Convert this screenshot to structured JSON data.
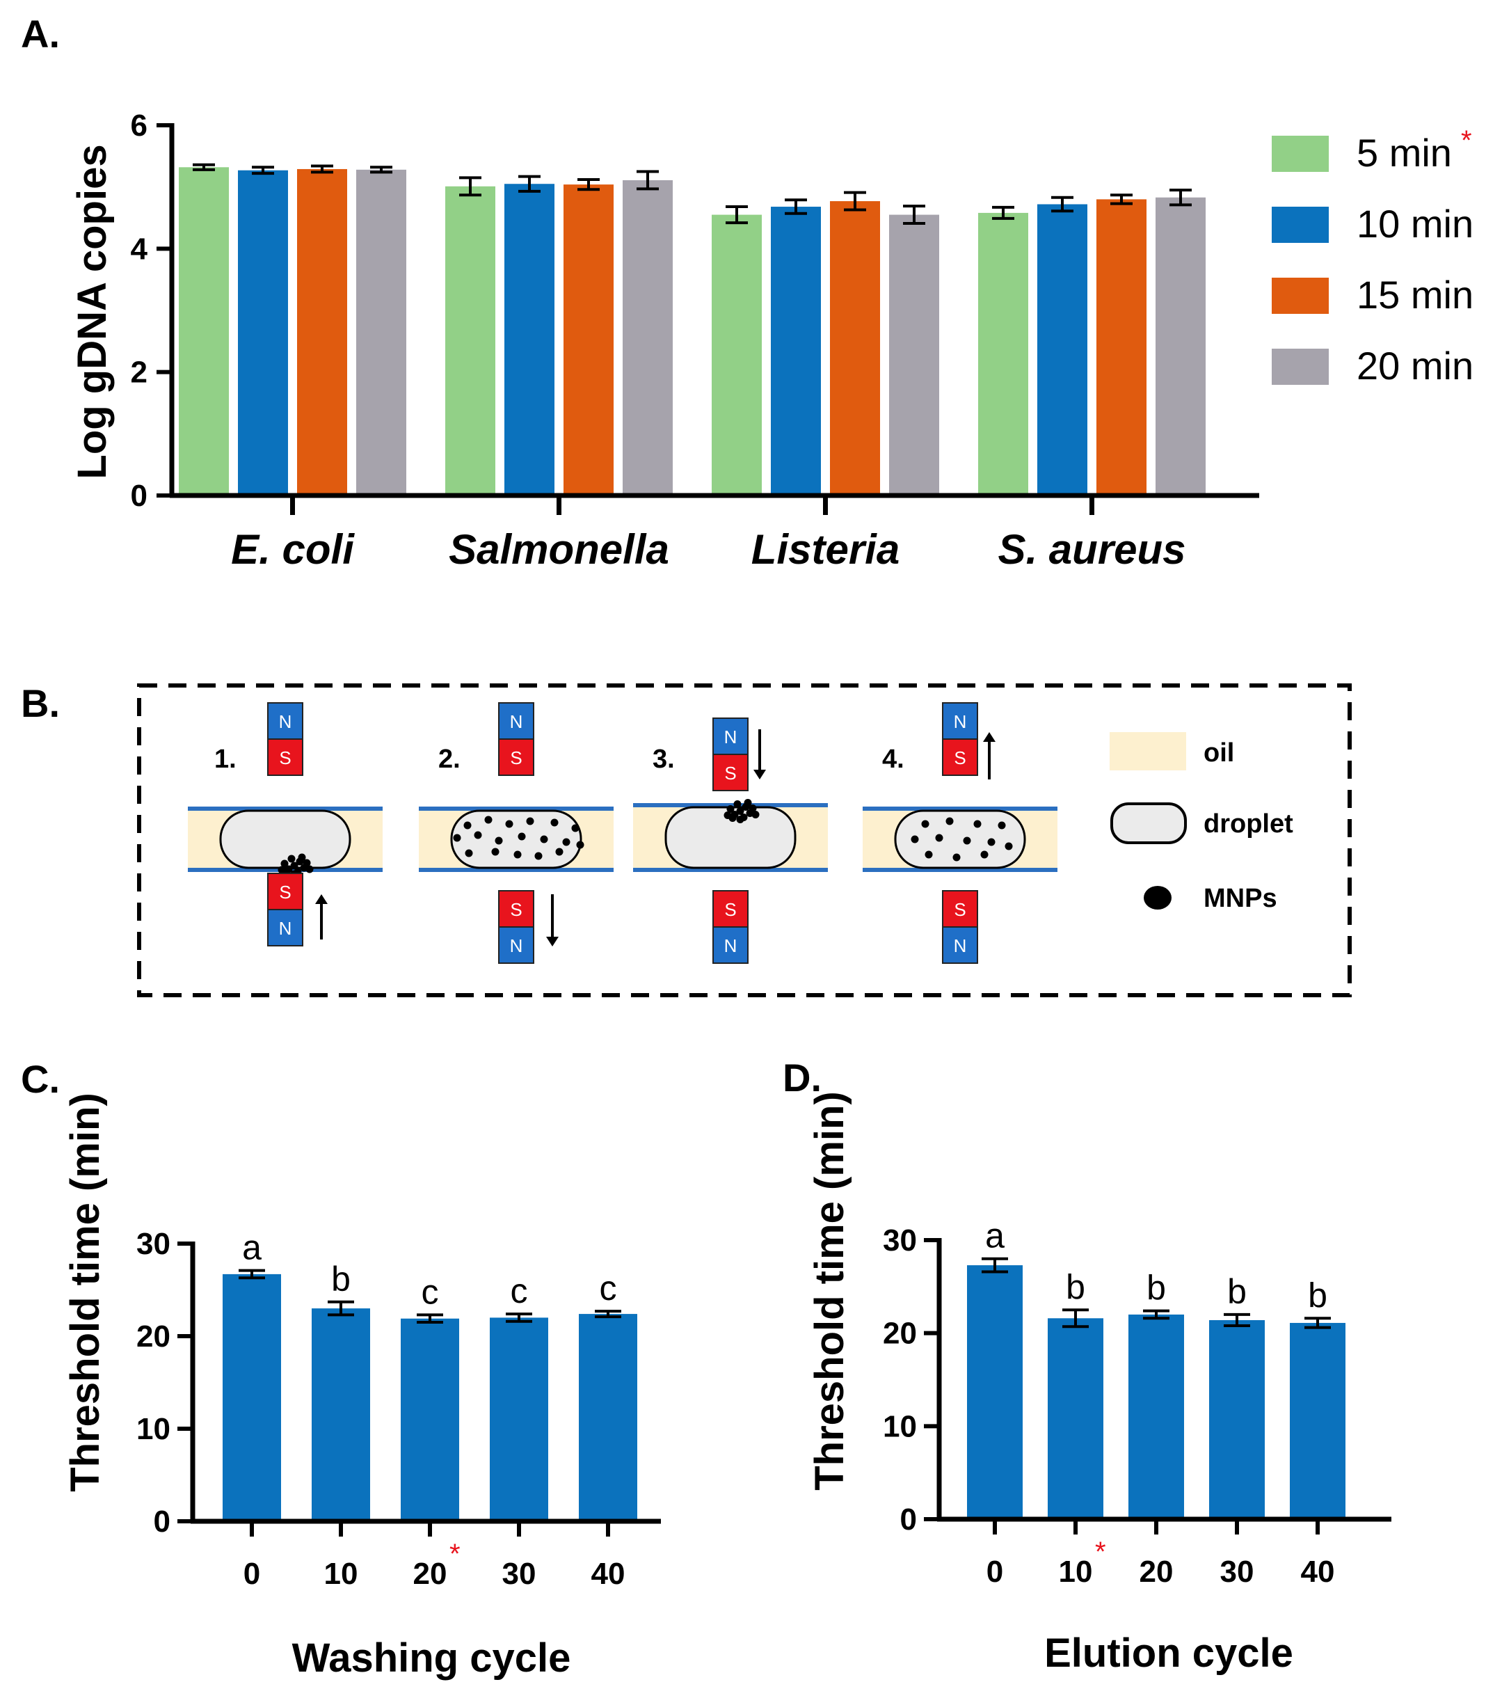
{
  "panels": {
    "a": "A.",
    "b": "B.",
    "c": "C.",
    "d": "D."
  },
  "colors": {
    "green": "#92d087",
    "blue": "#0b72bd",
    "orange": "#e05b0f",
    "gray": "#a6a3ac",
    "bar": "#0b72bd",
    "oil": "#fdf0cf",
    "droplet": "#ebebeb",
    "north": "#1f6fc8",
    "south": "#e8141d",
    "asterisk": "#e8141d",
    "channel": "#2b6fc0"
  },
  "chart_data": [
    {
      "id": "A",
      "type": "bar",
      "ylabel": "Log gDNA copies",
      "ylim": [
        0,
        6
      ],
      "yticks": [
        "0",
        "2",
        "4",
        "6"
      ],
      "categories": [
        "E. coli",
        "Salmonella",
        "Listeria",
        "S. aureus"
      ],
      "series": [
        {
          "name": "5 min",
          "asterisk": "*",
          "color": "green",
          "values": [
            5.32,
            5.01,
            4.55,
            4.58
          ],
          "errors": [
            0.04,
            0.14,
            0.13,
            0.09
          ]
        },
        {
          "name": "10 min",
          "color": "blue",
          "values": [
            5.27,
            5.05,
            4.68,
            4.72
          ],
          "errors": [
            0.05,
            0.12,
            0.11,
            0.11
          ]
        },
        {
          "name": "15 min",
          "color": "orange",
          "values": [
            5.29,
            5.04,
            4.77,
            4.8
          ],
          "errors": [
            0.05,
            0.08,
            0.14,
            0.07
          ]
        },
        {
          "name": "20 min",
          "color": "gray",
          "values": [
            5.28,
            5.11,
            4.55,
            4.83
          ],
          "errors": [
            0.04,
            0.14,
            0.14,
            0.12
          ]
        }
      ]
    },
    {
      "id": "C",
      "type": "bar",
      "xlabel": "Washing cycle",
      "ylabel": "Threshold time (min)",
      "ylim": [
        0,
        30
      ],
      "yticks": [
        "0",
        "10",
        "20",
        "30"
      ],
      "categories": [
        "0",
        "10",
        "20",
        "30",
        "40"
      ],
      "highlight_index": 2,
      "asterisk": "*",
      "values": [
        26.7,
        23.0,
        21.9,
        22.0,
        22.4
      ],
      "errors": [
        0.4,
        0.7,
        0.4,
        0.4,
        0.3
      ],
      "letters": [
        "a",
        "b",
        "c",
        "c",
        "c"
      ]
    },
    {
      "id": "D",
      "type": "bar",
      "xlabel": "Elution cycle",
      "ylabel": "Threshold time (min)",
      "ylim": [
        0,
        30
      ],
      "yticks": [
        "0",
        "10",
        "20",
        "30"
      ],
      "categories": [
        "0",
        "10",
        "20",
        "30",
        "40"
      ],
      "highlight_index": 1,
      "asterisk": "*",
      "values": [
        27.3,
        21.6,
        22.0,
        21.4,
        21.1
      ],
      "errors": [
        0.7,
        0.9,
        0.4,
        0.6,
        0.5
      ],
      "letters": [
        "a",
        "b",
        "b",
        "b",
        "b"
      ]
    }
  ],
  "schematic": {
    "steps": [
      "1.",
      "2.",
      "3.",
      "4."
    ],
    "magnet_north": "N",
    "magnet_south": "S",
    "legend": {
      "oil": "oil",
      "droplet": "droplet",
      "mnps": "MNPs"
    }
  }
}
